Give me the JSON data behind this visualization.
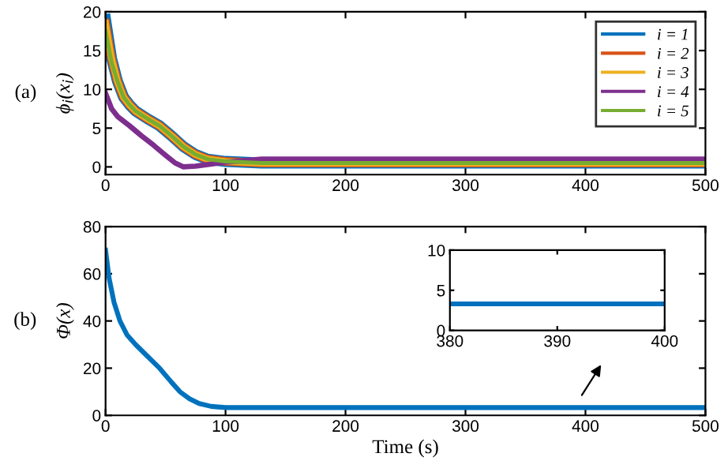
{
  "chart_data": [
    {
      "type": "line",
      "ylabel": "ϕ$_{i}$(x$_{i}$)",
      "annotations": [
        "(a)"
      ],
      "xlim": [
        0,
        500
      ],
      "ylim": [
        -1,
        20
      ],
      "xticks": [
        0,
        100,
        200,
        300,
        400,
        500
      ],
      "yticks": [
        0,
        5,
        10,
        15,
        20
      ],
      "grid": false,
      "legend": "top right",
      "marker": "none",
      "line_style": "solid",
      "series": [
        {
          "name": "i = 1",
          "color": "#0072bd",
          "x": [
            0,
            5,
            10,
            15,
            20,
            25,
            35,
            45,
            55,
            65,
            75,
            85,
            100,
            130,
            200,
            300,
            400,
            500
          ],
          "values": [
            19,
            14,
            11,
            9,
            8,
            7.2,
            6.2,
            5.3,
            4,
            2.6,
            1.6,
            1,
            0.7,
            0.5,
            0.5,
            0.5,
            0.5,
            0.5
          ]
        },
        {
          "name": "i = 2",
          "color": "#d95319",
          "x": [
            0,
            5,
            10,
            15,
            20,
            25,
            35,
            45,
            55,
            65,
            75,
            85,
            100,
            130,
            200,
            300,
            400,
            500
          ],
          "values": [
            18.5,
            14,
            11,
            9,
            8,
            7.2,
            6.2,
            5.3,
            4,
            2.6,
            1.6,
            1,
            0.7,
            0.5,
            0.5,
            0.5,
            0.5,
            0.5
          ]
        },
        {
          "name": "i = 3",
          "color": "#edb120",
          "x": [
            0,
            5,
            10,
            15,
            20,
            25,
            35,
            45,
            55,
            65,
            75,
            85,
            100,
            130,
            200,
            300,
            400,
            500
          ],
          "values": [
            18.5,
            14,
            11,
            9,
            8,
            7.2,
            6.2,
            5.3,
            4,
            2.6,
            1.6,
            1,
            0.7,
            0.5,
            0.5,
            0.5,
            0.5,
            0.5
          ]
        },
        {
          "name": "i = 4",
          "color": "#7e2f8e",
          "x": [
            0,
            5,
            10,
            20,
            30,
            40,
            50,
            58,
            65,
            75,
            90,
            100,
            115,
            130,
            200,
            300,
            400,
            500
          ],
          "values": [
            9.5,
            7.5,
            6.5,
            5.3,
            4,
            2.8,
            1.5,
            0.5,
            0,
            0.1,
            0.4,
            0.6,
            0.8,
            1,
            1,
            1,
            1,
            1
          ]
        },
        {
          "name": "i = 5",
          "color": "#77ac30",
          "x": [
            0,
            5,
            10,
            15,
            20,
            25,
            35,
            45,
            55,
            65,
            75,
            85,
            100,
            130,
            200,
            300,
            400,
            500
          ],
          "values": [
            17.5,
            13.5,
            11,
            9,
            8,
            7.2,
            6.2,
            5.3,
            4,
            2.6,
            1.6,
            1,
            0.7,
            0.5,
            0.5,
            0.5,
            0.5,
            0.5
          ]
        }
      ]
    },
    {
      "type": "line",
      "xlabel": "Time (s)",
      "ylabel": "Φ(x)",
      "annotations": [
        "(b)"
      ],
      "xlim": [
        0,
        500
      ],
      "ylim": [
        0,
        80
      ],
      "xticks": [
        0,
        100,
        200,
        300,
        400,
        500
      ],
      "yticks": [
        0,
        20,
        40,
        60,
        80
      ],
      "grid": false,
      "marker": "none",
      "line_style": "solid",
      "series": [
        {
          "color": "#0072bd",
          "x": [
            0,
            3,
            7,
            12,
            18,
            25,
            35,
            45,
            55,
            62,
            70,
            78,
            88,
            100,
            150,
            200,
            300,
            400,
            500
          ],
          "values": [
            70,
            58,
            48,
            40,
            34,
            30,
            25,
            20,
            14,
            10,
            7,
            5,
            3.8,
            3.3,
            3.3,
            3.3,
            3.3,
            3.3,
            3.3
          ]
        }
      ]
    },
    {
      "type": "line",
      "xlim": [
        380,
        400
      ],
      "ylim": [
        0,
        10
      ],
      "xticks": [
        380,
        390,
        400
      ],
      "yticks": [
        0,
        5,
        10
      ],
      "grid": false,
      "marker": "none",
      "line_style": "solid",
      "series": [
        {
          "color": "#0072bd",
          "x": [
            380,
            385,
            390,
            395,
            400
          ],
          "values": [
            3.3,
            3.3,
            3.3,
            3.3,
            3.3
          ]
        }
      ]
    }
  ]
}
